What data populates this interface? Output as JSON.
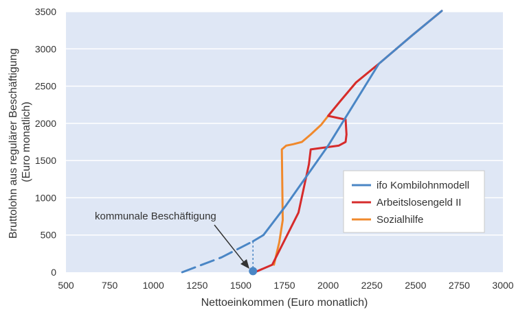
{
  "chart_data": {
    "type": "line",
    "xlabel": "Nettoeinkommen (Euro monatlich)",
    "ylabel_lines": [
      "Bruttolohn aus regulärer Beschäftigung",
      "(Euro monatlich)"
    ],
    "xlim": [
      500,
      3000
    ],
    "ylim": [
      0,
      3500
    ],
    "x_ticks": [
      "500",
      "750",
      "1000",
      "1250",
      "1500",
      "1750",
      "2000",
      "2250",
      "2500",
      "2750",
      "3000"
    ],
    "y_ticks": [
      "0",
      "500",
      "1000",
      "1500",
      "2000",
      "2500",
      "3000",
      "3500"
    ],
    "grid": "horizontal",
    "plot_background": "#dfe7f5",
    "legend_position": "right",
    "series": [
      {
        "name": "ifo Kombilohnmodell",
        "color": "#4a86c5",
        "segments": [
          {
            "style": "dashed",
            "points": [
              [
                1165,
                0
              ],
              [
                1390,
                200
              ],
              [
                1570,
                415
              ]
            ]
          },
          {
            "style": "solid",
            "points": [
              [
                1570,
                415
              ],
              [
                1630,
                500
              ],
              [
                1760,
                900
              ],
              [
                2000,
                1700
              ],
              [
                2290,
                2800
              ],
              [
                2480,
                3180
              ],
              [
                2650,
                3510
              ]
            ]
          }
        ]
      },
      {
        "name": "Arbeitslosengeld II",
        "color": "#d62b2b",
        "segments": [
          {
            "style": "solid",
            "points": [
              [
                1580,
                0
              ],
              [
                1680,
                100
              ],
              [
                1830,
                800
              ],
              [
                1890,
                1450
              ],
              [
                1900,
                1650
              ],
              [
                2060,
                1700
              ],
              [
                2100,
                1750
              ],
              [
                2105,
                1850
              ],
              [
                2100,
                2050
              ],
              [
                2000,
                2100
              ],
              [
                2070,
                2300
              ],
              [
                2160,
                2550
              ],
              [
                2290,
                2800
              ],
              [
                2480,
                3180
              ],
              [
                2650,
                3510
              ]
            ]
          }
        ]
      },
      {
        "name": "Sozialhilfe",
        "color": "#f0892c",
        "segments": [
          {
            "style": "solid",
            "points": [
              [
                1690,
                100
              ],
              [
                1720,
                400
              ],
              [
                1740,
                700
              ],
              [
                1735,
                1650
              ],
              [
                1760,
                1700
              ],
              [
                1800,
                1720
              ],
              [
                1850,
                1750
              ],
              [
                1900,
                1850
              ],
              [
                1960,
                1980
              ],
              [
                2000,
                2100
              ],
              [
                2070,
                2300
              ],
              [
                2160,
                2550
              ],
              [
                2290,
                2800
              ]
            ]
          }
        ]
      }
    ],
    "marker": {
      "label": "kommunale Beschäftigung",
      "point": [
        1570,
        15
      ],
      "guide_top": [
        1570,
        415
      ],
      "color": "#4a86c5"
    }
  }
}
